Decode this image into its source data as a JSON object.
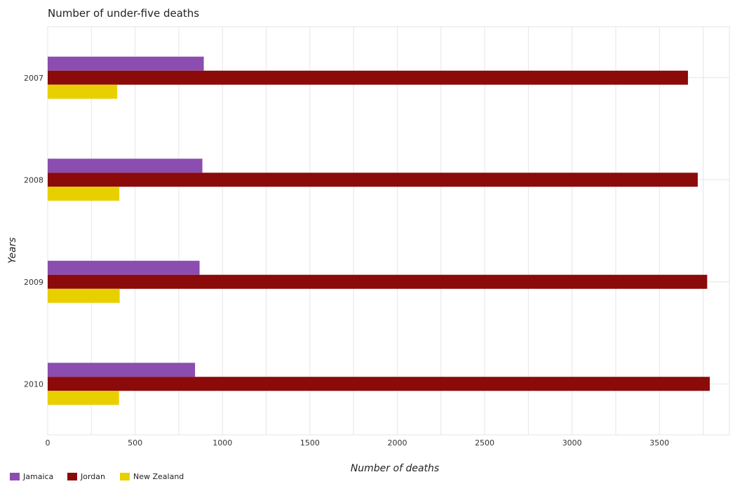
{
  "chart_data": {
    "type": "bar",
    "orientation": "horizontal",
    "title": "Number of under-five deaths",
    "xlabel": "Number of deaths",
    "ylabel": "Years",
    "categories": [
      "2007",
      "2008",
      "2009",
      "2010"
    ],
    "series": [
      {
        "name": "Jamaica",
        "color": "#8B4DAF",
        "values": [
          893,
          885,
          869,
          843
        ]
      },
      {
        "name": "Jordan",
        "color": "#8B0A0A",
        "values": [
          3663,
          3719,
          3773,
          3788
        ]
      },
      {
        "name": "New Zealand",
        "color": "#E8D000",
        "values": [
          398,
          410,
          412,
          408
        ]
      }
    ],
    "xlim": [
      0,
      3900
    ],
    "xticks": [
      0,
      500,
      1000,
      1500,
      2000,
      2500,
      3000,
      3500
    ],
    "grid": true,
    "legend_position": "bottom-left"
  }
}
